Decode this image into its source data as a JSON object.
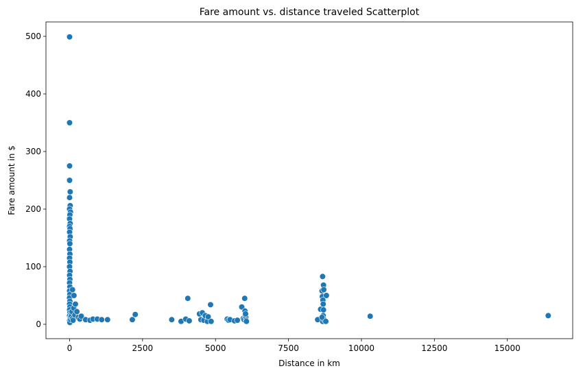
{
  "chart_data": {
    "type": "scatter",
    "title": "Fare amount vs. distance traveled Scatterplot",
    "xlabel": "Distance in km",
    "ylabel": "Fare amount in $",
    "xlim": [
      -810,
      17240
    ],
    "ylim": [
      -25,
      525
    ],
    "x_ticks": [
      0,
      2500,
      5000,
      7500,
      10000,
      12500,
      15000
    ],
    "y_ticks": [
      0,
      100,
      200,
      300,
      400,
      500
    ],
    "x_tick_labels": [
      "0",
      "2500",
      "5000",
      "7500",
      "10000",
      "12500",
      "15000"
    ],
    "y_tick_labels": [
      "0",
      "100",
      "200",
      "300",
      "400",
      "500"
    ],
    "grid": false,
    "marker_color": "#1f77b4",
    "marker_edge_color": "#ffffff",
    "points": [
      {
        "x": 0,
        "y": 499
      },
      {
        "x": 0,
        "y": 350
      },
      {
        "x": 0,
        "y": 275
      },
      {
        "x": 0,
        "y": 250
      },
      {
        "x": 20,
        "y": 230
      },
      {
        "x": 0,
        "y": 220
      },
      {
        "x": 20,
        "y": 206
      },
      {
        "x": 0,
        "y": 200
      },
      {
        "x": 30,
        "y": 195
      },
      {
        "x": 10,
        "y": 190
      },
      {
        "x": 0,
        "y": 183
      },
      {
        "x": 20,
        "y": 175
      },
      {
        "x": 0,
        "y": 170
      },
      {
        "x": 15,
        "y": 166
      },
      {
        "x": 0,
        "y": 160
      },
      {
        "x": 20,
        "y": 152
      },
      {
        "x": 0,
        "y": 145
      },
      {
        "x": 10,
        "y": 140
      },
      {
        "x": 0,
        "y": 130
      },
      {
        "x": 10,
        "y": 122
      },
      {
        "x": 0,
        "y": 115
      },
      {
        "x": 10,
        "y": 108
      },
      {
        "x": 0,
        "y": 100
      },
      {
        "x": 15,
        "y": 92
      },
      {
        "x": 0,
        "y": 85
      },
      {
        "x": 10,
        "y": 78
      },
      {
        "x": 0,
        "y": 72
      },
      {
        "x": 10,
        "y": 65
      },
      {
        "x": 0,
        "y": 58
      },
      {
        "x": 10,
        "y": 52
      },
      {
        "x": 0,
        "y": 46
      },
      {
        "x": 10,
        "y": 40
      },
      {
        "x": 0,
        "y": 35
      },
      {
        "x": 10,
        "y": 30
      },
      {
        "x": 0,
        "y": 25
      },
      {
        "x": 10,
        "y": 20
      },
      {
        "x": 0,
        "y": 15
      },
      {
        "x": 10,
        "y": 10
      },
      {
        "x": 0,
        "y": 6
      },
      {
        "x": 10,
        "y": 3
      },
      {
        "x": 30,
        "y": 12
      },
      {
        "x": 40,
        "y": 8
      },
      {
        "x": 50,
        "y": 18
      },
      {
        "x": 60,
        "y": 14
      },
      {
        "x": 80,
        "y": 22
      },
      {
        "x": 100,
        "y": 10
      },
      {
        "x": 120,
        "y": 7
      },
      {
        "x": 140,
        "y": 28
      },
      {
        "x": 150,
        "y": 50
      },
      {
        "x": 100,
        "y": 60
      },
      {
        "x": 200,
        "y": 35
      },
      {
        "x": 180,
        "y": 16
      },
      {
        "x": 250,
        "y": 22
      },
      {
        "x": 300,
        "y": 12
      },
      {
        "x": 350,
        "y": 9
      },
      {
        "x": 400,
        "y": 14
      },
      {
        "x": 550,
        "y": 8
      },
      {
        "x": 700,
        "y": 7
      },
      {
        "x": 800,
        "y": 9
      },
      {
        "x": 950,
        "y": 9
      },
      {
        "x": 1100,
        "y": 8
      },
      {
        "x": 1300,
        "y": 8
      },
      {
        "x": 2150,
        "y": 8
      },
      {
        "x": 2250,
        "y": 17
      },
      {
        "x": 3500,
        "y": 8
      },
      {
        "x": 3820,
        "y": 5
      },
      {
        "x": 3980,
        "y": 9
      },
      {
        "x": 4050,
        "y": 45
      },
      {
        "x": 4100,
        "y": 6
      },
      {
        "x": 4450,
        "y": 18
      },
      {
        "x": 4500,
        "y": 8
      },
      {
        "x": 4550,
        "y": 20
      },
      {
        "x": 4600,
        "y": 7
      },
      {
        "x": 4650,
        "y": 15
      },
      {
        "x": 4720,
        "y": 5
      },
      {
        "x": 4750,
        "y": 13
      },
      {
        "x": 4830,
        "y": 34
      },
      {
        "x": 4850,
        "y": 5
      },
      {
        "x": 5400,
        "y": 9
      },
      {
        "x": 5450,
        "y": 7
      },
      {
        "x": 5500,
        "y": 8
      },
      {
        "x": 5650,
        "y": 6
      },
      {
        "x": 5750,
        "y": 7
      },
      {
        "x": 5900,
        "y": 30
      },
      {
        "x": 5950,
        "y": 10
      },
      {
        "x": 5980,
        "y": 8
      },
      {
        "x": 6000,
        "y": 45
      },
      {
        "x": 6010,
        "y": 23
      },
      {
        "x": 6020,
        "y": 15
      },
      {
        "x": 6040,
        "y": 12
      },
      {
        "x": 6050,
        "y": 7
      },
      {
        "x": 6060,
        "y": 5
      },
      {
        "x": 6030,
        "y": 18
      },
      {
        "x": 8500,
        "y": 8
      },
      {
        "x": 8600,
        "y": 26
      },
      {
        "x": 8650,
        "y": 58
      },
      {
        "x": 8660,
        "y": 48
      },
      {
        "x": 8670,
        "y": 83
      },
      {
        "x": 8680,
        "y": 42
      },
      {
        "x": 8690,
        "y": 35
      },
      {
        "x": 8700,
        "y": 68
      },
      {
        "x": 8710,
        "y": 60
      },
      {
        "x": 8700,
        "y": 25
      },
      {
        "x": 8690,
        "y": 15
      },
      {
        "x": 8680,
        "y": 10
      },
      {
        "x": 8670,
        "y": 5
      },
      {
        "x": 8720,
        "y": 8
      },
      {
        "x": 8650,
        "y": 12
      },
      {
        "x": 8800,
        "y": 50
      },
      {
        "x": 8780,
        "y": 5
      },
      {
        "x": 10300,
        "y": 14
      },
      {
        "x": 16400,
        "y": 15
      }
    ]
  }
}
